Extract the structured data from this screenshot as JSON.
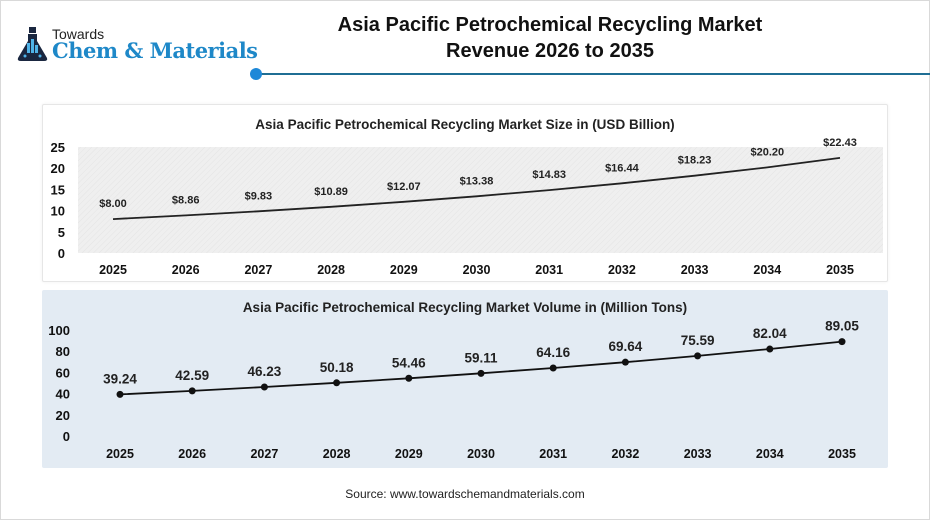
{
  "logo": {
    "line1": "Towards",
    "line2": "Chem & Materials"
  },
  "header": {
    "title_line1": "Asia Pacific Petrochemical Recycling Market",
    "title_line2": "Revenue 2026 to 2035",
    "accent_color": "#1e88d8"
  },
  "source": "Source: www.towardschemandmaterials.com",
  "chart_data": [
    {
      "type": "line",
      "title": "Asia Pacific Petrochemical Recycling Market Size in (USD Billion)",
      "xlabel": "",
      "ylabel": "",
      "categories": [
        "2025",
        "2026",
        "2027",
        "2028",
        "2029",
        "2030",
        "2031",
        "2032",
        "2033",
        "2034",
        "2035"
      ],
      "values": [
        8.0,
        8.86,
        9.83,
        10.89,
        12.07,
        13.38,
        14.83,
        16.44,
        18.23,
        20.2,
        22.43
      ],
      "data_labels": [
        "$8.00",
        "$8.86",
        "$9.83",
        "$10.89",
        "$12.07",
        "$13.38",
        "$14.83",
        "$16.44",
        "$18.23",
        "$20.20",
        "$22.43"
      ],
      "yticks": [
        "0",
        "5",
        "10",
        "15",
        "20",
        "25"
      ],
      "ylim": [
        0,
        25
      ],
      "grid": false,
      "markers": false,
      "line_color": "#222222",
      "plot_background": "#efefef"
    },
    {
      "type": "line",
      "title": "Asia Pacific Petrochemical Recycling Market Volume in (Million Tons)",
      "xlabel": "",
      "ylabel": "",
      "categories": [
        "2025",
        "2026",
        "2027",
        "2028",
        "2029",
        "2030",
        "2031",
        "2032",
        "2033",
        "2034",
        "2035"
      ],
      "values": [
        39.24,
        42.59,
        46.23,
        50.18,
        54.46,
        59.11,
        64.16,
        69.64,
        75.59,
        82.04,
        89.05
      ],
      "data_labels": [
        "39.24",
        "42.59",
        "46.23",
        "50.18",
        "54.46",
        "59.11",
        "64.16",
        "69.64",
        "75.59",
        "82.04",
        "89.05"
      ],
      "yticks": [
        "0",
        "20",
        "40",
        "60",
        "80",
        "100"
      ],
      "ylim": [
        0,
        100
      ],
      "grid": false,
      "markers": true,
      "line_color": "#111111",
      "plot_background": "#e3ebf3"
    }
  ]
}
